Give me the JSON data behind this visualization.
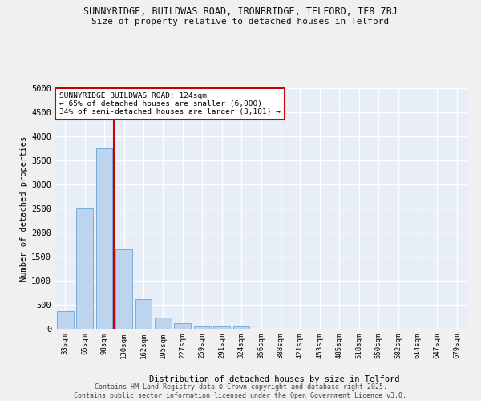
{
  "title1": "SUNNYRIDGE, BUILDWAS ROAD, IRONBRIDGE, TELFORD, TF8 7BJ",
  "title2": "Size of property relative to detached houses in Telford",
  "xlabel": "Distribution of detached houses by size in Telford",
  "ylabel": "Number of detached properties",
  "bar_color": "#bdd4ee",
  "bar_edge_color": "#7aacd6",
  "background_color": "#e8eef8",
  "grid_color": "#ffffff",
  "vline_color": "#cc0000",
  "vline_x": 2.5,
  "annotation_text": "SUNNYRIDGE BUILDWAS ROAD: 124sqm\n← 65% of detached houses are smaller (6,000)\n34% of semi-detached houses are larger (3,181) →",
  "annotation_box_color": "#ffffff",
  "annotation_box_edge": "#cc0000",
  "categories": [
    "33sqm",
    "65sqm",
    "98sqm",
    "130sqm",
    "162sqm",
    "195sqm",
    "227sqm",
    "259sqm",
    "291sqm",
    "324sqm",
    "356sqm",
    "388sqm",
    "421sqm",
    "453sqm",
    "485sqm",
    "518sqm",
    "550sqm",
    "582sqm",
    "614sqm",
    "647sqm",
    "679sqm"
  ],
  "values": [
    375,
    2525,
    3750,
    1650,
    620,
    230,
    110,
    50,
    50,
    50,
    0,
    0,
    0,
    0,
    0,
    0,
    0,
    0,
    0,
    0,
    0
  ],
  "ylim": [
    0,
    5000
  ],
  "yticks": [
    0,
    500,
    1000,
    1500,
    2000,
    2500,
    3000,
    3500,
    4000,
    4500,
    5000
  ],
  "footer1": "Contains HM Land Registry data © Crown copyright and database right 2025.",
  "footer2": "Contains public sector information licensed under the Open Government Licence v3.0."
}
